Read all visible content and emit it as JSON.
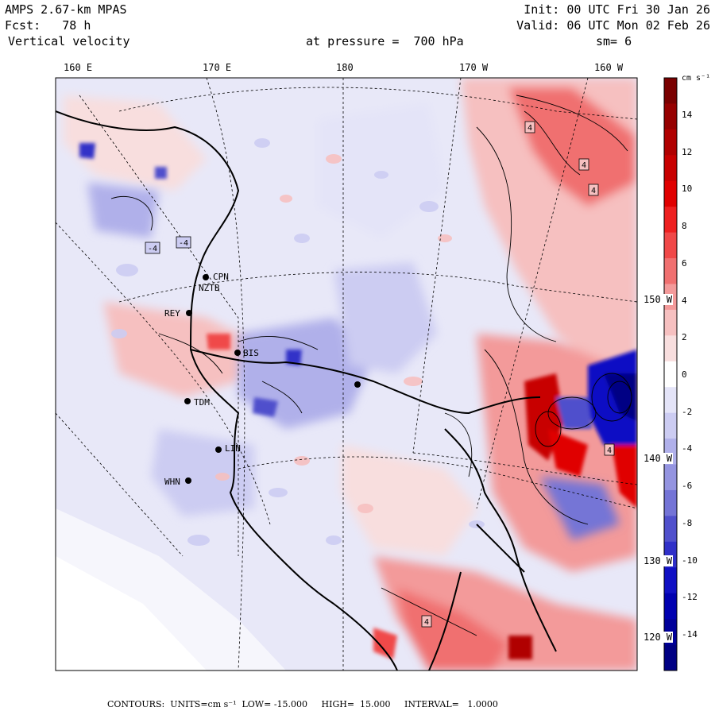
{
  "header": {
    "model": "AMPS 2.67-km MPAS",
    "forecast": "Fcst:   78 h",
    "field": "Vertical velocity",
    "init": "Init: 00 UTC Fri 30 Jan 26",
    "valid": "Valid: 06 UTC Mon 02 Feb 26",
    "pressure": "at pressure =  700 hPa",
    "smoothing": "sm= 6"
  },
  "lon_labels": [
    "160 E",
    "170 E",
    "180",
    "170 W",
    "160 W"
  ],
  "lat_labels": [
    "150 W",
    "140 W",
    "130 W",
    "120 W"
  ],
  "colorbar": {
    "units": "cm s⁻¹",
    "labels": [
      "14",
      "12",
      "10",
      "8",
      "6",
      "4",
      "2",
      "0",
      "-2",
      "-4",
      "-6",
      "-8",
      "-10",
      "-12",
      "-14"
    ],
    "colors": [
      "#7a0000",
      "#960000",
      "#b00000",
      "#c80000",
      "#e00000",
      "#ee2020",
      "#f04848",
      "#f07070",
      "#f39a9a",
      "#f6c0c0",
      "#f8dede",
      "#ffffff",
      "#e4e4f8",
      "#ccccf2",
      "#b0b0ea",
      "#9494e0",
      "#7474d6",
      "#5050cc",
      "#3030c8",
      "#1010c4",
      "#0000b0",
      "#00009a",
      "#000084"
    ]
  },
  "stations": [
    {
      "id": "CPN"
    },
    {
      "id": "NZTB"
    },
    {
      "id": "REY"
    },
    {
      "id": "BIS"
    },
    {
      "id": "TDM"
    },
    {
      "id": "LIN"
    },
    {
      "id": "WHN"
    }
  ],
  "footer": {
    "contours": "CONTOURS:  UNITS=cm s⁻¹  LOW= -15.000     HIGH=  15.000     INTERVAL=   1.0000"
  }
}
